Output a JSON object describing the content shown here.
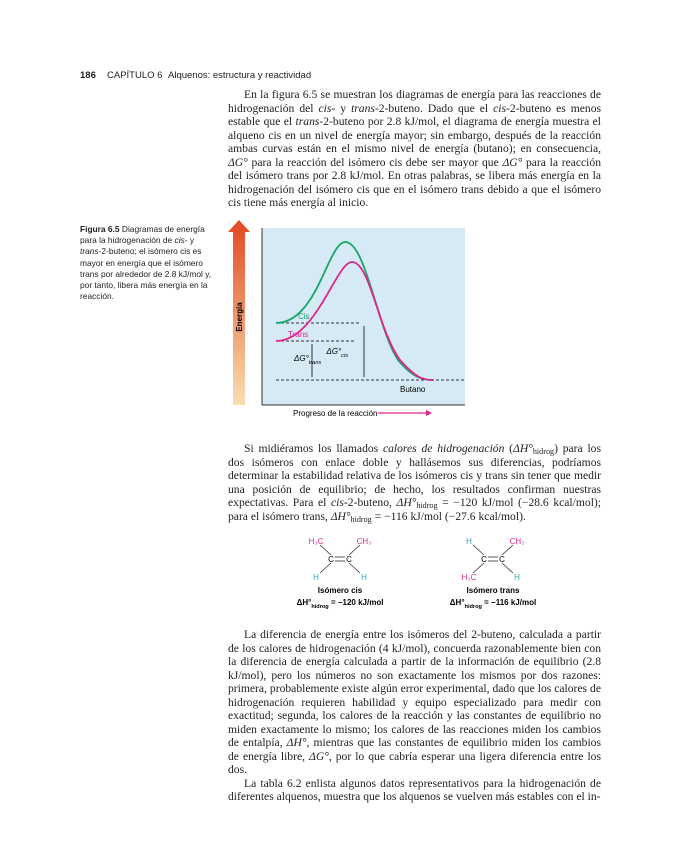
{
  "header": {
    "page_number": "186",
    "chapter": "CAPÍTULO 6",
    "chapter_title": "Alquenos: estructura y reactividad"
  },
  "paragraphs": [
    [
      "En la figura 6.5 se muestran los diagramas de energía para las reacciones de hidrogenación del ",
      {
        "text": "cis-",
        "style": "i"
      },
      " y ",
      {
        "text": "trans",
        "style": "i"
      },
      "-2-buteno. Dado que el ",
      {
        "text": "cis",
        "style": "i"
      },
      "-2-buteno es menos estable que el ",
      {
        "text": "trans",
        "style": "i"
      },
      "-2-buteno por 2.8 kJ/mol, el diagrama de energía muestra el alqueno cis en un nivel de energía mayor; sin embargo, después de la reacción ambas curvas están en el mismo nivel de energía (butano); en consecuencia, ",
      {
        "text": "ΔG°",
        "style": "i"
      },
      " para la reacción del isómero cis debe ser mayor que ",
      {
        "text": "ΔG°",
        "style": "i"
      },
      " para la reacción del isómero trans por 2.8 kJ/mol. En otras palabras, se libera más energía en la hidrogenación del isómero cis que en el isómero trans debido a que el isómero cis tiene más energía al inicio."
    ],
    [
      "Si midiéramos los llamados ",
      {
        "text": "calores de hidrogenación",
        "style": "i"
      },
      " (",
      {
        "text": "ΔH°",
        "style": "i"
      },
      {
        "text": "hidrog",
        "style": "sub"
      },
      ") para los dos isómeros con enlace doble y hallásemos sus diferencias, podríamos determinar la estabilidad relativa de los isómeros cis y trans sin tener que medir una posición de equilibrio; de hecho, los resultados confirman nuestras expectativas. Para el ",
      {
        "text": "cis",
        "style": "i"
      },
      "-2-buteno, ",
      {
        "text": "ΔH°",
        "style": "i"
      },
      {
        "text": "hidrog",
        "style": "sub"
      },
      " = −120 kJ/mol (−28.6 kcal/mol); para el isómero trans, ",
      {
        "text": "ΔH°",
        "style": "i"
      },
      {
        "text": "hidrog",
        "style": "sub"
      },
      " = −116 kJ/mol (−27.6 kcal/mol)."
    ],
    [
      "La diferencia de energía entre los isómeros del 2-buteno, calculada a partir de los calores de hidrogenación (4 kJ/mol), concuerda razonablemente bien con la diferencia de energía calculada a partir de la información de equilibrio (2.8 kJ/mol), pero los números no son exactamente los mismos por dos razones: primera, probablemente existe algún error experimental, dado que los calores de hidrogenación requieren habilidad y equipo especializado para medir con exactitud; segunda, los calores de la reacción y las constantes de equilibrio no miden exactamente lo mismo; los calores de las reacciones miden los cambios de entalpía, ",
      {
        "text": "ΔH°",
        "style": "i"
      },
      ", mientras que las constantes de equilibrio miden los cambios de energía libre, ",
      {
        "text": "ΔG°",
        "style": "i"
      },
      ", por lo que cabría esperar una ligera diferencia entre los dos."
    ],
    [
      "La tabla 6.2 enlista algunos datos representativos para la hidrogenación de diferentes alquenos, muestra que los alquenos se vuelven más estables con el in-"
    ]
  ],
  "figure": {
    "caption": [
      {
        "text": "Figura 6.5",
        "style": "b"
      },
      " Diagramas de energía para la hidrogenación de ",
      {
        "text": "cis-",
        "style": "i"
      },
      " y ",
      {
        "text": "trans",
        "style": "i"
      },
      "-2-buteno; el isómero cis es mayor en energía que el isómero trans por alrededor de 2.8 kJ/mol y, por tanto, libera más energía en la reacción."
    ],
    "y_axis_label": "Energía",
    "curves": [
      "Cis",
      "Trans"
    ],
    "delta_g_trans": [
      "ΔG°",
      {
        "text": "trans",
        "style": "sub"
      }
    ],
    "delta_g_cis": [
      "ΔG°",
      {
        "text": "cis",
        "style": "sub"
      }
    ],
    "product_label": "Butano",
    "x_axis_label": "Progreso de la reacción"
  },
  "structures": [
    {
      "substituents": [
        "H₃C",
        "CH₃",
        "H",
        "H"
      ],
      "carbons": [
        "C",
        "C"
      ],
      "name": "Isómero cis",
      "enthalpy": [
        "ΔH°",
        {
          "text": "hidrog",
          "style": "sub"
        },
        " = −120 kJ/mol"
      ]
    },
    {
      "substituents": [
        "H",
        "CH₃",
        "H₃C",
        "H"
      ],
      "carbons": [
        "C",
        "C"
      ],
      "name": "Isómero trans",
      "enthalpy": [
        "ΔH°",
        {
          "text": "hidrog",
          "style": "sub"
        },
        " = −116 kJ/mol"
      ]
    }
  ]
}
